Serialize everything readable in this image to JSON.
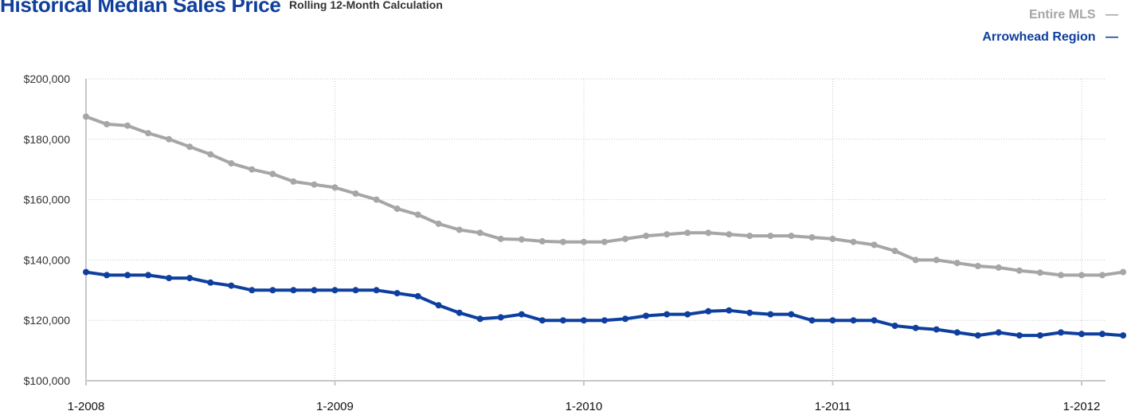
{
  "header": {
    "title": "Historical Median Sales Price",
    "subtitle": "Rolling 12-Month Calculation"
  },
  "chart_data": {
    "type": "line",
    "title": "Historical Median Sales Price",
    "subtitle": "Rolling 12-Month Calculation",
    "xlabel": "",
    "ylabel": "",
    "ylim": [
      100000,
      200000
    ],
    "y_ticks": [
      "$200,000",
      "$180,000",
      "$160,000",
      "$140,000",
      "$120,000",
      "$100,000"
    ],
    "y_tick_values": [
      200000,
      180000,
      160000,
      140000,
      120000,
      100000
    ],
    "x_ticks": [
      "1-2008",
      "1-2009",
      "1-2010",
      "1-2011",
      "1-2012"
    ],
    "x_start": "1-2008",
    "x_end": "3-2012",
    "legend_position": "top-right",
    "grid": true,
    "series": [
      {
        "name": "Entire MLS",
        "color": "#a6a6a6",
        "values": [
          187500,
          185000,
          184500,
          182000,
          180000,
          177500,
          175000,
          172000,
          170000,
          168500,
          166000,
          165000,
          164000,
          162000,
          160000,
          157000,
          155000,
          152000,
          150000,
          149000,
          147000,
          146800,
          146200,
          146000,
          146000,
          146000,
          147000,
          148000,
          148500,
          149000,
          149000,
          148500,
          148000,
          148000,
          148000,
          147500,
          147000,
          146000,
          145000,
          143000,
          140000,
          140000,
          139000,
          138000,
          137500,
          136500,
          135800,
          135000,
          135000,
          135000,
          136000
        ]
      },
      {
        "name": "Arrowhead Region",
        "color": "#0e3f9e",
        "values": [
          136000,
          135000,
          135000,
          135000,
          134000,
          134000,
          132500,
          131500,
          130000,
          130000,
          130000,
          130000,
          130000,
          130000,
          130000,
          129000,
          128000,
          125000,
          122500,
          120500,
          121000,
          122000,
          120000,
          120000,
          120000,
          120000,
          120500,
          121500,
          122000,
          122000,
          123000,
          123300,
          122500,
          122000,
          122000,
          120000,
          120000,
          120000,
          120000,
          118200,
          117500,
          117000,
          116000,
          115000,
          116000,
          115000,
          115000,
          116000,
          115500,
          115500,
          115000
        ]
      }
    ]
  }
}
